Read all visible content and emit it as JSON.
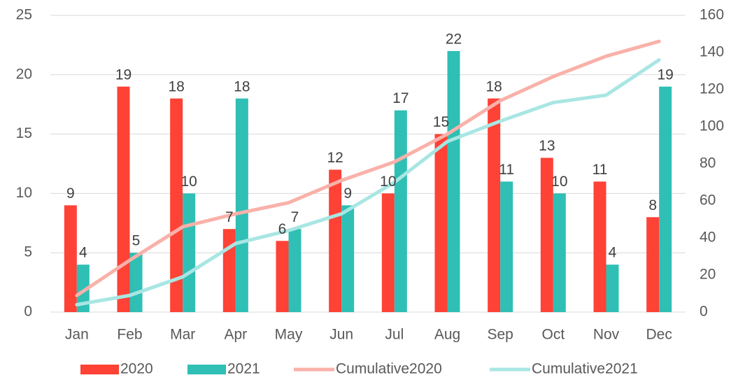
{
  "chart_data": {
    "type": "bar",
    "categories": [
      "Jan",
      "Feb",
      "Mar",
      "Apr",
      "May",
      "Jun",
      "Jul",
      "Aug",
      "Sep",
      "Oct",
      "Nov",
      "Dec"
    ],
    "series": [
      {
        "name": "2020",
        "type": "bar",
        "color": "#fe4236",
        "values": [
          9,
          19,
          18,
          7,
          6,
          12,
          10,
          15,
          18,
          13,
          11,
          8
        ]
      },
      {
        "name": "2021",
        "type": "bar",
        "color": "#2fbfb5",
        "values": [
          4,
          5,
          10,
          18,
          7,
          9,
          17,
          22,
          11,
          10,
          4,
          19
        ]
      },
      {
        "name": "Cumulative2020",
        "type": "line",
        "axis": "y2",
        "color": "#f9b1a9",
        "values": [
          9,
          28,
          46,
          53,
          59,
          71,
          81,
          96,
          114,
          127,
          138,
          146
        ]
      },
      {
        "name": "Cumulative2021",
        "type": "line",
        "axis": "y2",
        "color": "#a8e6e3",
        "values": [
          4,
          9,
          19,
          37,
          44,
          53,
          70,
          92,
          103,
          113,
          117,
          136
        ]
      }
    ],
    "ylim": [
      0,
      25
    ],
    "yticks": [
      0,
      5,
      10,
      15,
      20,
      25
    ],
    "y2lim": [
      0,
      160
    ],
    "y2ticks": [
      0,
      20,
      40,
      60,
      80,
      100,
      120,
      140,
      160
    ],
    "grid": true,
    "legend": "bottom"
  }
}
